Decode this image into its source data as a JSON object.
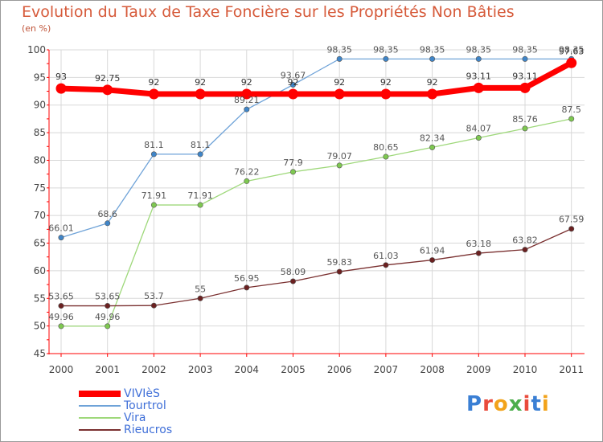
{
  "header": {
    "title": "Evolution du Taux de Taxe Foncière sur les Propriétés Non Bâties",
    "subtitle": "(en %)"
  },
  "logo": {
    "text": "Proxiti",
    "letter_colors": [
      "#3a7fd4",
      "#e94b3c",
      "#f2a31b",
      "#4cae4c",
      "#e94b3c",
      "#3a7fd4",
      "#f2a31b"
    ]
  },
  "colors": {
    "title": "#d65a3a",
    "legend_text": "#3f6fd8",
    "axis": "#ff0000",
    "grid": "#d8d8d8"
  },
  "chart_data": {
    "type": "line",
    "title": "Evolution du Taux de Taxe Foncière sur les Propriétés Non Bâties",
    "ylabel": "(en %)",
    "xlabel": "",
    "x": [
      "2000",
      "2001",
      "2002",
      "2003",
      "2004",
      "2005",
      "2006",
      "2007",
      "2008",
      "2009",
      "2010",
      "2011"
    ],
    "ylim": [
      45,
      100
    ],
    "yticks": [
      45,
      50,
      55,
      60,
      65,
      70,
      75,
      80,
      85,
      90,
      95,
      100
    ],
    "grid": true,
    "legend_position": "bottom-left",
    "series": [
      {
        "name": "VIVIèS",
        "color": "#ff0000",
        "emphasis": true,
        "values": [
          93,
          92.75,
          92,
          92,
          92,
          92,
          92,
          92,
          92,
          93.11,
          93.11,
          97.63
        ],
        "labels": [
          "93",
          "92.75",
          "92",
          "92",
          "92",
          "92",
          "92",
          "92",
          "92",
          "93.11",
          "93.11",
          "97.63"
        ]
      },
      {
        "name": "Tourtrol",
        "color": "#6fa3d8",
        "point_color": "#3f85c8",
        "values": [
          66.01,
          68.6,
          81.1,
          81.1,
          89.21,
          93.67,
          98.35,
          98.35,
          98.35,
          98.35,
          98.35,
          98.35
        ],
        "labels": [
          "66.01",
          "68.6",
          "81.1",
          "81.1",
          "89.21",
          "93.67",
          "98.35",
          "98.35",
          "98.35",
          "98.35",
          "98.35",
          "98.35"
        ]
      },
      {
        "name": "Vira",
        "color": "#9ed87a",
        "point_color": "#7ec850",
        "values": [
          49.96,
          49.96,
          71.91,
          71.91,
          76.22,
          77.9,
          79.07,
          80.65,
          82.34,
          84.07,
          85.76,
          87.5
        ],
        "labels": [
          "49.96",
          "49.96",
          "71.91",
          "71.91",
          "76.22",
          "77.9",
          "79.07",
          "80.65",
          "82.34",
          "84.07",
          "85.76",
          "87.5"
        ]
      },
      {
        "name": "Rieucros",
        "color": "#7a3030",
        "point_color": "#6b2020",
        "values": [
          53.65,
          53.65,
          53.7,
          55,
          56.95,
          58.09,
          59.83,
          61.03,
          61.94,
          63.18,
          63.82,
          67.59
        ],
        "labels": [
          "53.65",
          "53.65",
          "53.7",
          "55",
          "56.95",
          "58.09",
          "59.83",
          "61.03",
          "61.94",
          "63.18",
          "63.82",
          "67.59"
        ]
      }
    ]
  }
}
